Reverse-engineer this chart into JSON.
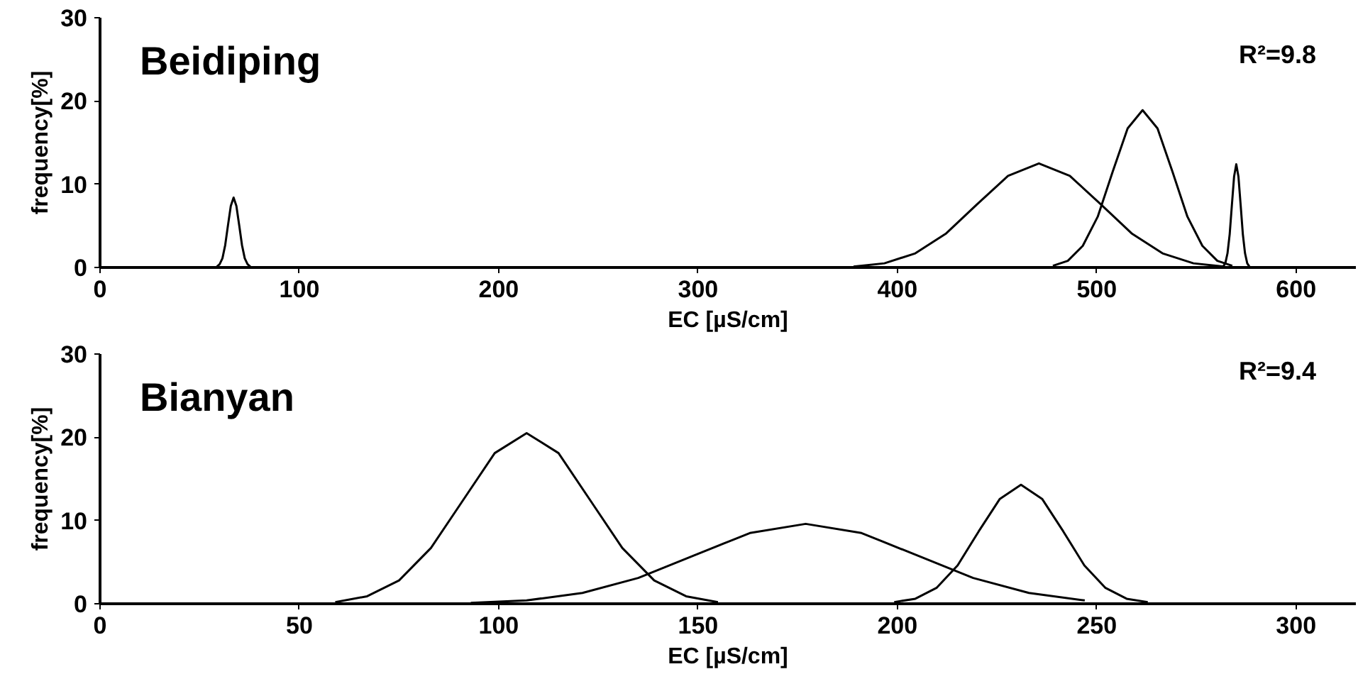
{
  "chart_data": [
    {
      "type": "line",
      "title": "Beidiping",
      "xlabel": "EC [µS/cm]",
      "ylabel": "frequency[%]",
      "annotations": [
        "R²=9.8"
      ],
      "xlim": [
        0,
        630
      ],
      "xticks": [
        0,
        100,
        200,
        300,
        400,
        500,
        600
      ],
      "ylim": [
        0,
        30
      ],
      "yticks": [
        0,
        10,
        20,
        30
      ],
      "grid": false,
      "series": [
        {
          "color": "#000000",
          "x": [
            58.6,
            60,
            61.4,
            62.8,
            64.2,
            65.6,
            67,
            68.4,
            69.8,
            71.2,
            72.6,
            74,
            75.4
          ],
          "values": [
            0.1,
            0.4,
            1.1,
            2.7,
            5.1,
            7.4,
            8.4,
            7.4,
            5.1,
            2.7,
            1.1,
            0.4,
            0.1
          ]
        },
        {
          "color": "#000000",
          "x": [
            378,
            393.5,
            409,
            424.5,
            440,
            455.5,
            471,
            486.5,
            502,
            517.5,
            533,
            548.5,
            564
          ],
          "values": [
            0.1,
            0.5,
            1.7,
            4.1,
            7.6,
            11.0,
            12.5,
            11.0,
            7.6,
            4.1,
            1.7,
            0.5,
            0.1
          ]
        },
        {
          "color": "#000000",
          "x": [
            478,
            485.5,
            493,
            500.5,
            508,
            515.5,
            523,
            530.5,
            538,
            545.5,
            553,
            560.5,
            568
          ],
          "values": [
            0.2,
            0.8,
            2.6,
            6.1,
            11.5,
            16.7,
            18.9,
            16.7,
            11.5,
            6.1,
            2.6,
            0.8,
            0.2
          ]
        },
        {
          "color": "#000000",
          "x": [
            563.4,
            564.5,
            565.6,
            566.7,
            567.8,
            568.9,
            570,
            571.1,
            572.2,
            573.3,
            574.4,
            575.5,
            576.6
          ],
          "values": [
            0.1,
            0.5,
            1.7,
            4.0,
            7.5,
            10.9,
            12.4,
            10.9,
            7.5,
            4.0,
            1.7,
            0.5,
            0.1
          ]
        }
      ]
    },
    {
      "type": "line",
      "title": "Bianyan",
      "xlabel": "EC [µS/cm]",
      "ylabel": "frequency[%]",
      "annotations": [
        "R²=9.4"
      ],
      "xlim": [
        0,
        315
      ],
      "xticks": [
        0,
        50,
        100,
        150,
        200,
        250,
        300
      ],
      "ylim": [
        0,
        30
      ],
      "yticks": [
        0,
        10,
        20,
        30
      ],
      "grid": false,
      "series": [
        {
          "color": "#000000",
          "x": [
            59,
            67,
            75,
            83,
            91,
            99,
            107,
            115,
            123,
            131,
            139,
            147,
            155
          ],
          "values": [
            0.2,
            0.9,
            2.8,
            6.7,
            12.4,
            18.1,
            20.5,
            18.1,
            12.4,
            6.7,
            2.8,
            0.9,
            0.2
          ]
        },
        {
          "color": "#000000",
          "x": [
            93,
            107,
            121,
            135,
            149,
            163,
            177,
            191,
            205,
            219,
            233,
            247
          ],
          "values": [
            0.1,
            0.4,
            1.3,
            3.1,
            5.8,
            8.5,
            9.6,
            8.5,
            5.8,
            3.1,
            1.3,
            0.4
          ]
        },
        {
          "color": "#000000",
          "x": [
            199.2,
            204.5,
            209.8,
            215.1,
            220.4,
            225.7,
            231,
            236.3,
            241.6,
            246.9,
            252.2,
            257.5,
            262.8
          ],
          "values": [
            0.2,
            0.6,
            1.9,
            4.6,
            8.7,
            12.6,
            14.3,
            12.6,
            8.7,
            4.6,
            1.9,
            0.6,
            0.2
          ]
        }
      ]
    }
  ]
}
